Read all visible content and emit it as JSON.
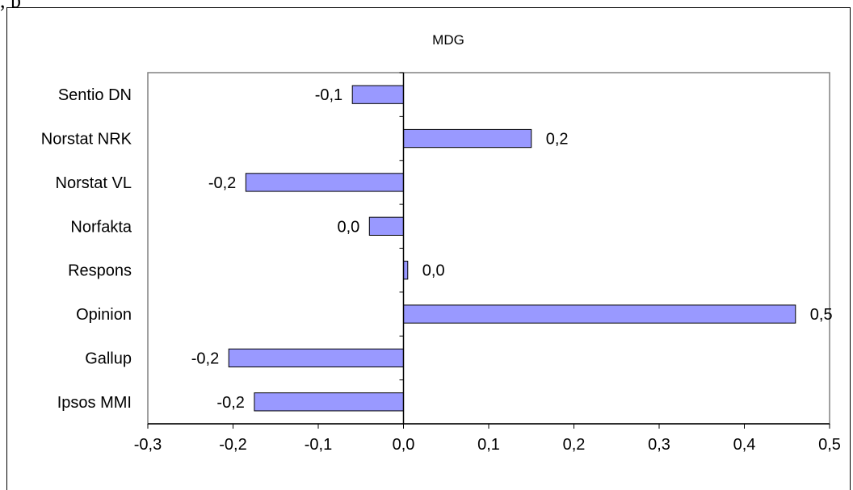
{
  "page": {
    "top_text_fragment": ", p"
  },
  "chart_data": {
    "type": "bar",
    "orientation": "horizontal",
    "title": "MDG",
    "xlabel": "",
    "ylabel": "",
    "categories": [
      "Sentio DN",
      "Norstat NRK",
      "Norstat VL",
      "Norfakta",
      "Respons",
      "Opinion",
      "Gallup",
      "Ipsos MMI"
    ],
    "values": [
      -0.06,
      0.15,
      -0.185,
      -0.04,
      0.005,
      0.46,
      -0.205,
      -0.175
    ],
    "data_labels": [
      "-0,1",
      "0,2",
      "-0,2",
      "0,0",
      "0,0",
      "0,5",
      "-0,2",
      "-0,2"
    ],
    "xlim": [
      -0.3,
      0.5
    ],
    "x_ticks": [
      -0.3,
      -0.2,
      -0.1,
      0.0,
      0.1,
      0.2,
      0.3,
      0.4,
      0.5
    ],
    "x_tick_labels": [
      "-0,3",
      "-0,2",
      "-0,1",
      "0,0",
      "0,1",
      "0,2",
      "0,3",
      "0,4",
      "0,5"
    ],
    "grid": false,
    "legend": false,
    "colors": {
      "bar_fill": "#9999ff",
      "bar_stroke": "#000000",
      "plot_border": "#808080"
    }
  }
}
